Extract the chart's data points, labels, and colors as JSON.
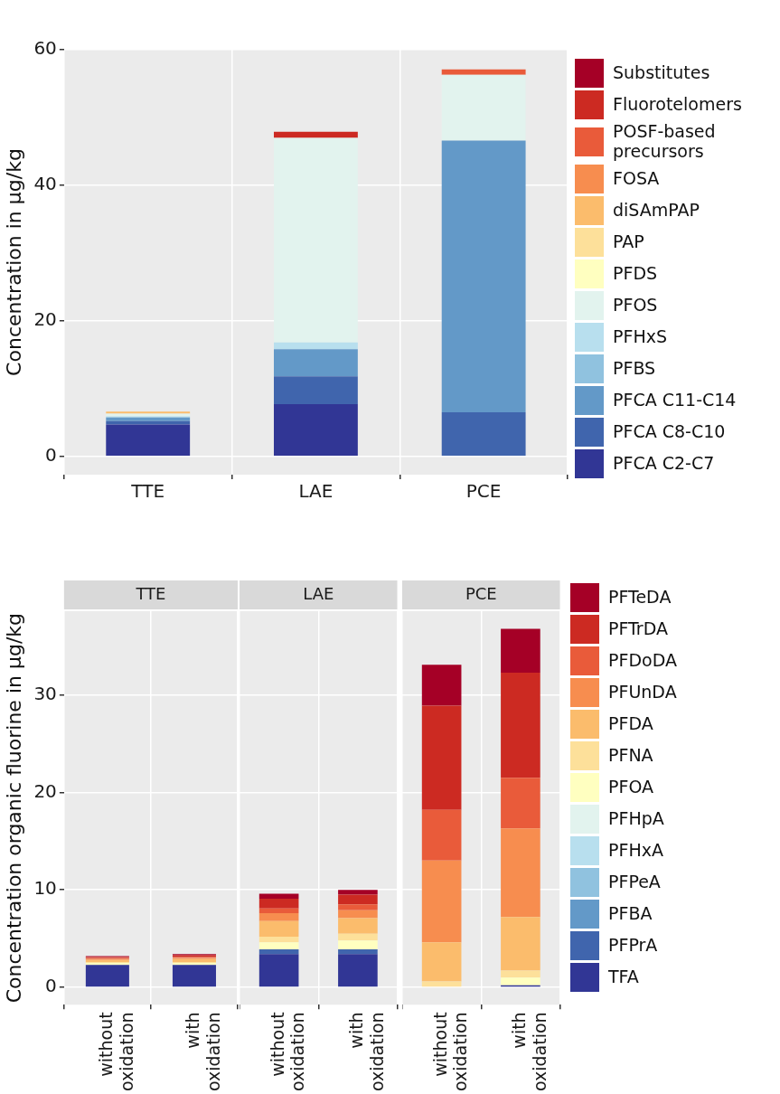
{
  "chart_data": [
    {
      "type": "bar",
      "stacked": true,
      "categories": [
        "TTE",
        "LAE",
        "PCE"
      ],
      "ylabel": "Concentration in µg/kg",
      "ylim": [
        -2.7,
        60
      ],
      "yticks": [
        0,
        20,
        40,
        60
      ],
      "grid": true,
      "legend": "right",
      "series": [
        {
          "name": "PFCA C2-C7",
          "color": "#313695",
          "values": [
            4.7,
            7.7,
            0
          ]
        },
        {
          "name": "PFCA C8-C10",
          "color": "#4065ad",
          "values": [
            0.5,
            4.1,
            6.5
          ]
        },
        {
          "name": "PFCA C11-C14",
          "color": "#6399c8",
          "values": [
            0.5,
            4.0,
            40.1
          ]
        },
        {
          "name": "PFBS",
          "color": "#90c2df",
          "values": [
            0.1,
            0,
            0
          ]
        },
        {
          "name": "PFHxS",
          "color": "#b8dfee",
          "values": [
            0.1,
            1.0,
            0
          ]
        },
        {
          "name": "PFOS",
          "color": "#e2f3ee",
          "values": [
            0.4,
            30.2,
            9.7
          ]
        },
        {
          "name": "PFDS",
          "color": "#ffffc0",
          "values": [
            0,
            0,
            0
          ]
        },
        {
          "name": "PAP",
          "color": "#fde09a",
          "values": [
            0,
            0,
            0
          ]
        },
        {
          "name": "diSAmPAP",
          "color": "#fbbc6c",
          "values": [
            0.3,
            0,
            0
          ]
        },
        {
          "name": "FOSA",
          "color": "#f78d4f",
          "values": [
            0,
            0,
            0
          ]
        },
        {
          "name": "POSF-based precursors",
          "color": "#e95b3a",
          "values": [
            0,
            0,
            0.8
          ]
        },
        {
          "name": "Fluorotelomers",
          "color": "#cc2a22",
          "values": [
            0,
            0.9,
            0
          ]
        },
        {
          "name": "Substitutes",
          "color": "#a50026",
          "values": [
            0,
            0,
            0
          ]
        }
      ]
    },
    {
      "type": "bar",
      "stacked": true,
      "title": "TTE",
      "categories": [
        "without oxidation",
        "with oxidation"
      ],
      "ylabel": "Concentration organic fluorine in µg/kg",
      "ylim": [
        -1.8,
        38.6
      ],
      "yticks": [
        0,
        10,
        20,
        30
      ],
      "grid": true,
      "series": [
        {
          "color": "#313695",
          "values": [
            2.3,
            2.3
          ]
        },
        {
          "color": "#4065ad",
          "values": [
            0,
            0
          ]
        },
        {
          "color": "#6399c8",
          "values": [
            0,
            0
          ]
        },
        {
          "color": "#90c2df",
          "values": [
            0,
            0
          ]
        },
        {
          "color": "#b8dfee",
          "values": [
            0,
            0
          ]
        },
        {
          "color": "#e2f3ee",
          "values": [
            0,
            0
          ]
        },
        {
          "color": "#ffffc0",
          "values": [
            0.2,
            0.2
          ]
        },
        {
          "color": "#fde09a",
          "values": [
            0.1,
            0.1
          ]
        },
        {
          "color": "#fbbc6c",
          "values": [
            0.2,
            0.3
          ]
        },
        {
          "color": "#f78d4f",
          "values": [
            0.1,
            0.1
          ]
        },
        {
          "color": "#e95b3a",
          "values": [
            0.1,
            0.1
          ]
        },
        {
          "color": "#cc2a22",
          "values": [
            0.1,
            0.2
          ]
        },
        {
          "color": "#a50026",
          "values": [
            0.1,
            0.1
          ]
        }
      ]
    },
    {
      "type": "bar",
      "stacked": true,
      "title": "LAE",
      "categories": [
        "without oxidation",
        "with oxidation"
      ],
      "ylim": [
        -1.8,
        38.6
      ],
      "yticks": [
        0,
        10,
        20,
        30
      ],
      "grid": true,
      "tick_labels": "x",
      "series": [
        {
          "color": "#313695",
          "values": [
            3.4,
            3.4
          ]
        },
        {
          "color": "#4065ad",
          "values": [
            0.5,
            0.5
          ]
        },
        {
          "color": "#6399c8",
          "values": [
            0,
            0
          ]
        },
        {
          "color": "#90c2df",
          "values": [
            0,
            0
          ]
        },
        {
          "color": "#b8dfee",
          "values": [
            0,
            0
          ]
        },
        {
          "color": "#e2f3ee",
          "values": [
            0,
            0
          ]
        },
        {
          "color": "#ffffc0",
          "values": [
            0.7,
            0.9
          ]
        },
        {
          "color": "#fde09a",
          "values": [
            0.6,
            0.7
          ]
        },
        {
          "color": "#fbbc6c",
          "values": [
            1.6,
            1.6
          ]
        },
        {
          "color": "#f78d4f",
          "values": [
            0.8,
            0.8
          ]
        },
        {
          "color": "#e95b3a",
          "values": [
            0.5,
            0.6
          ]
        },
        {
          "color": "#cc2a22",
          "values": [
            1.0,
            1.0
          ]
        },
        {
          "color": "#a50026",
          "values": [
            0.5,
            0.5
          ]
        }
      ]
    },
    {
      "type": "bar",
      "stacked": true,
      "title": "PCE",
      "categories": [
        "without oxidation",
        "with oxidation"
      ],
      "ylim": [
        -1.8,
        38.6
      ],
      "yticks": [
        0,
        10,
        20,
        30
      ],
      "grid": true,
      "tick_labels": "x",
      "legend": "right",
      "series": [
        {
          "name": "TFA",
          "color": "#313695",
          "values": [
            0,
            0.2
          ]
        },
        {
          "name": "PFPrA",
          "color": "#4065ad",
          "values": [
            0,
            0
          ]
        },
        {
          "name": "PFBA",
          "color": "#6399c8",
          "values": [
            0,
            0
          ]
        },
        {
          "name": "PFPeA",
          "color": "#90c2df",
          "values": [
            0,
            0
          ]
        },
        {
          "name": "PFHxA",
          "color": "#b8dfee",
          "values": [
            0,
            0
          ]
        },
        {
          "name": "PFHpA",
          "color": "#e2f3ee",
          "values": [
            0,
            0
          ]
        },
        {
          "name": "PFOA",
          "color": "#ffffc0",
          "values": [
            0,
            0.8
          ]
        },
        {
          "name": "PFNA",
          "color": "#fde09a",
          "values": [
            0.6,
            0.7
          ]
        },
        {
          "name": "PFDA",
          "color": "#fbbc6c",
          "values": [
            4.0,
            5.5
          ]
        },
        {
          "name": "PFUnDA",
          "color": "#f78d4f",
          "values": [
            8.4,
            9.1
          ]
        },
        {
          "name": "PFDoDA",
          "color": "#e95b3a",
          "values": [
            5.2,
            5.2
          ]
        },
        {
          "name": "PFTrDA",
          "color": "#cc2a22",
          "values": [
            10.7,
            10.8
          ]
        },
        {
          "name": "PFTeDA",
          "color": "#a50026",
          "values": [
            4.2,
            4.5
          ]
        }
      ]
    }
  ]
}
